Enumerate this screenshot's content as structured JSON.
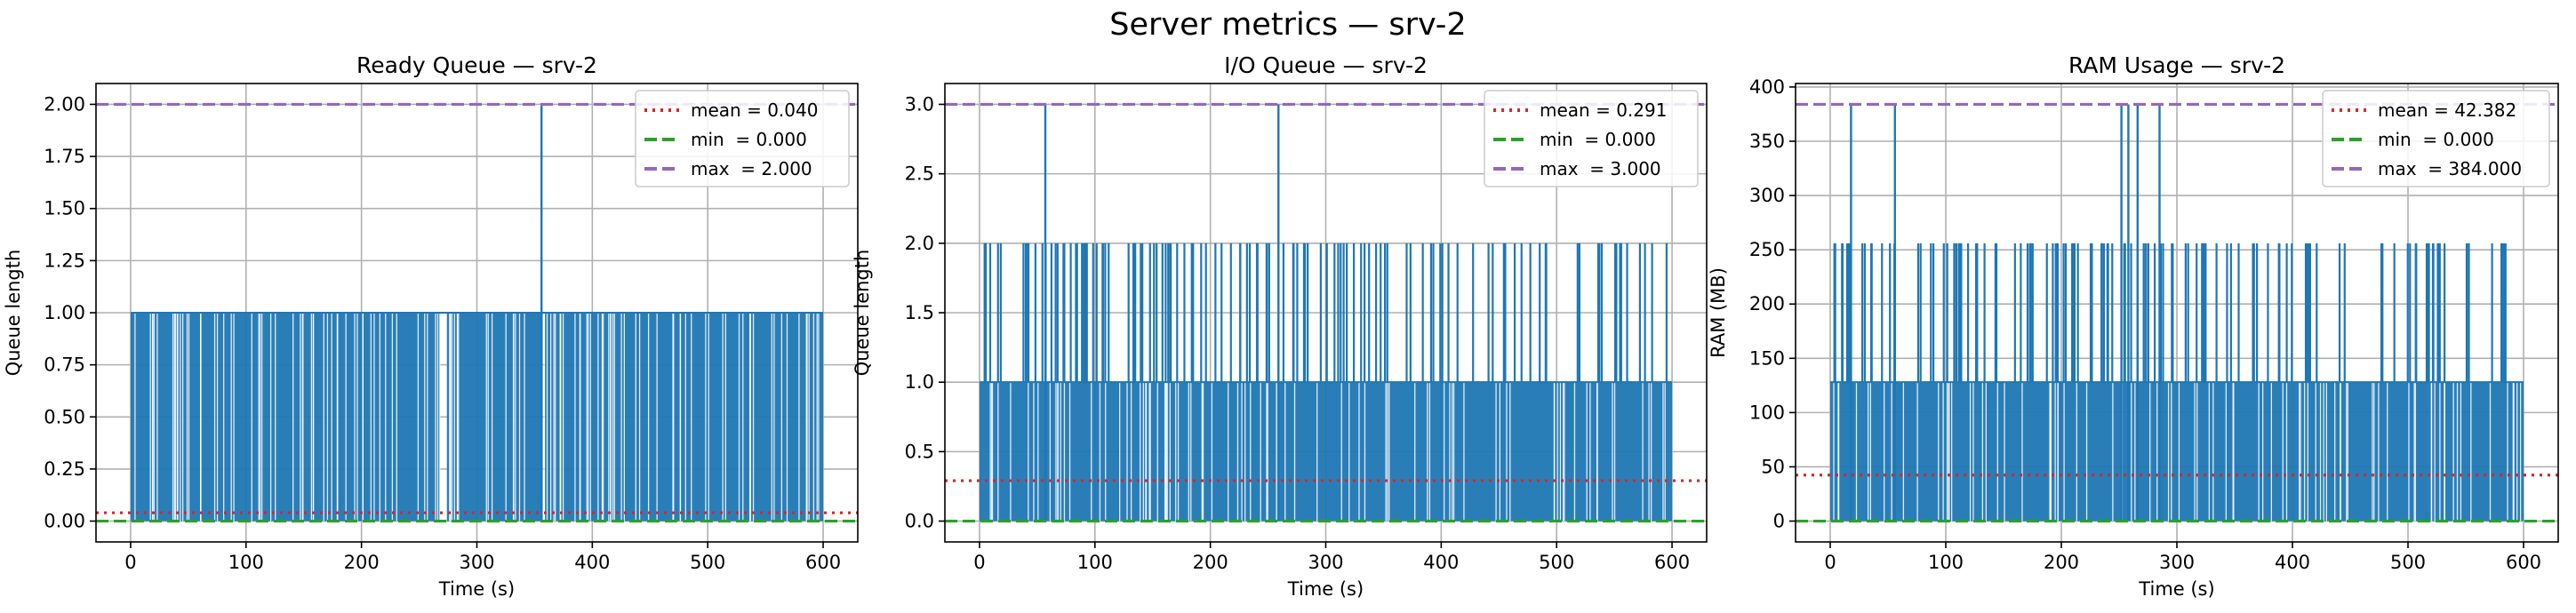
{
  "suptitle": "Server metrics — srv-2",
  "colors": {
    "data": "#1f77b4",
    "mean": "#d62728",
    "min": "#2ca02c",
    "max": "#9467bd",
    "grid": "#b0b0b0"
  },
  "chart_data": [
    {
      "type": "area",
      "title": "Ready Queue — srv-2",
      "xlabel": "Time (s)",
      "ylabel": "Queue length",
      "xlim": [
        -30,
        630
      ],
      "ylim": [
        -0.1,
        2.1
      ],
      "xticks": [
        0,
        100,
        200,
        300,
        400,
        500,
        600
      ],
      "yticks": [
        0.0,
        0.25,
        0.5,
        0.75,
        1.0,
        1.25,
        1.5,
        1.75,
        2.0
      ],
      "ytick_labels": [
        "0.00",
        "0.25",
        "0.50",
        "0.75",
        "1.00",
        "1.25",
        "1.50",
        "1.75",
        "2.00"
      ],
      "grid": true,
      "legend_position": "top-right",
      "series": {
        "x_range": [
          0,
          600
        ],
        "base_level": 1,
        "gaps": [
          [
            268,
            274
          ],
          [
            357,
            359
          ]
        ],
        "spikes": [
          [
            356,
            2
          ]
        ]
      },
      "stats": [
        {
          "kind": "mean",
          "label": "mean = 0.040",
          "value": 0.04
        },
        {
          "kind": "min",
          "label": "min  = 0.000",
          "value": 0.0
        },
        {
          "kind": "max",
          "label": "max  = 2.000",
          "value": 2.0
        }
      ]
    },
    {
      "type": "area",
      "title": "I/O Queue — srv-2",
      "xlabel": "Time (s)",
      "ylabel": "Queue length",
      "xlim": [
        -30,
        630
      ],
      "ylim": [
        -0.15,
        3.15
      ],
      "xticks": [
        0,
        100,
        200,
        300,
        400,
        500,
        600
      ],
      "yticks": [
        0.0,
        0.5,
        1.0,
        1.5,
        2.0,
        2.5,
        3.0
      ],
      "ytick_labels": [
        "0.0",
        "0.5",
        "1.0",
        "1.5",
        "2.0",
        "2.5",
        "3.0"
      ],
      "grid": true,
      "legend_position": "top-right",
      "series": {
        "x_range": [
          0,
          600
        ],
        "base_level": 1,
        "gaps": [],
        "spike_level": 2,
        "spike_count": 125,
        "spikes": [
          [
            57,
            3
          ],
          [
            259,
            3
          ]
        ]
      },
      "stats": [
        {
          "kind": "mean",
          "label": "mean = 0.291",
          "value": 0.291
        },
        {
          "kind": "min",
          "label": "min  = 0.000",
          "value": 0.0
        },
        {
          "kind": "max",
          "label": "max  = 3.000",
          "value": 3.0
        }
      ]
    },
    {
      "type": "area",
      "title": "RAM Usage — srv-2",
      "xlabel": "Time (s)",
      "ylabel": "RAM (MB)",
      "xlim": [
        -30,
        630
      ],
      "ylim": [
        -19.2,
        403.2
      ],
      "xticks": [
        0,
        100,
        200,
        300,
        400,
        500,
        600
      ],
      "yticks": [
        0,
        50,
        100,
        150,
        200,
        250,
        300,
        350,
        400
      ],
      "ytick_labels": [
        "0",
        "50",
        "100",
        "150",
        "200",
        "250",
        "300",
        "350",
        "400"
      ],
      "grid": true,
      "legend_position": "top-right",
      "series": {
        "x_range": [
          0,
          600
        ],
        "base_level": 128,
        "gaps": [],
        "spike_level": 256,
        "spike_count": 125,
        "spikes": [
          [
            18,
            384
          ],
          [
            56,
            384
          ],
          [
            252,
            384
          ],
          [
            258,
            384
          ],
          [
            266,
            384
          ],
          [
            285,
            384
          ]
        ]
      },
      "stats": [
        {
          "kind": "mean",
          "label": "mean = 42.382",
          "value": 42.382
        },
        {
          "kind": "min",
          "label": "min  = 0.000",
          "value": 0.0
        },
        {
          "kind": "max",
          "label": "max  = 384.000",
          "value": 384.0
        }
      ]
    }
  ]
}
